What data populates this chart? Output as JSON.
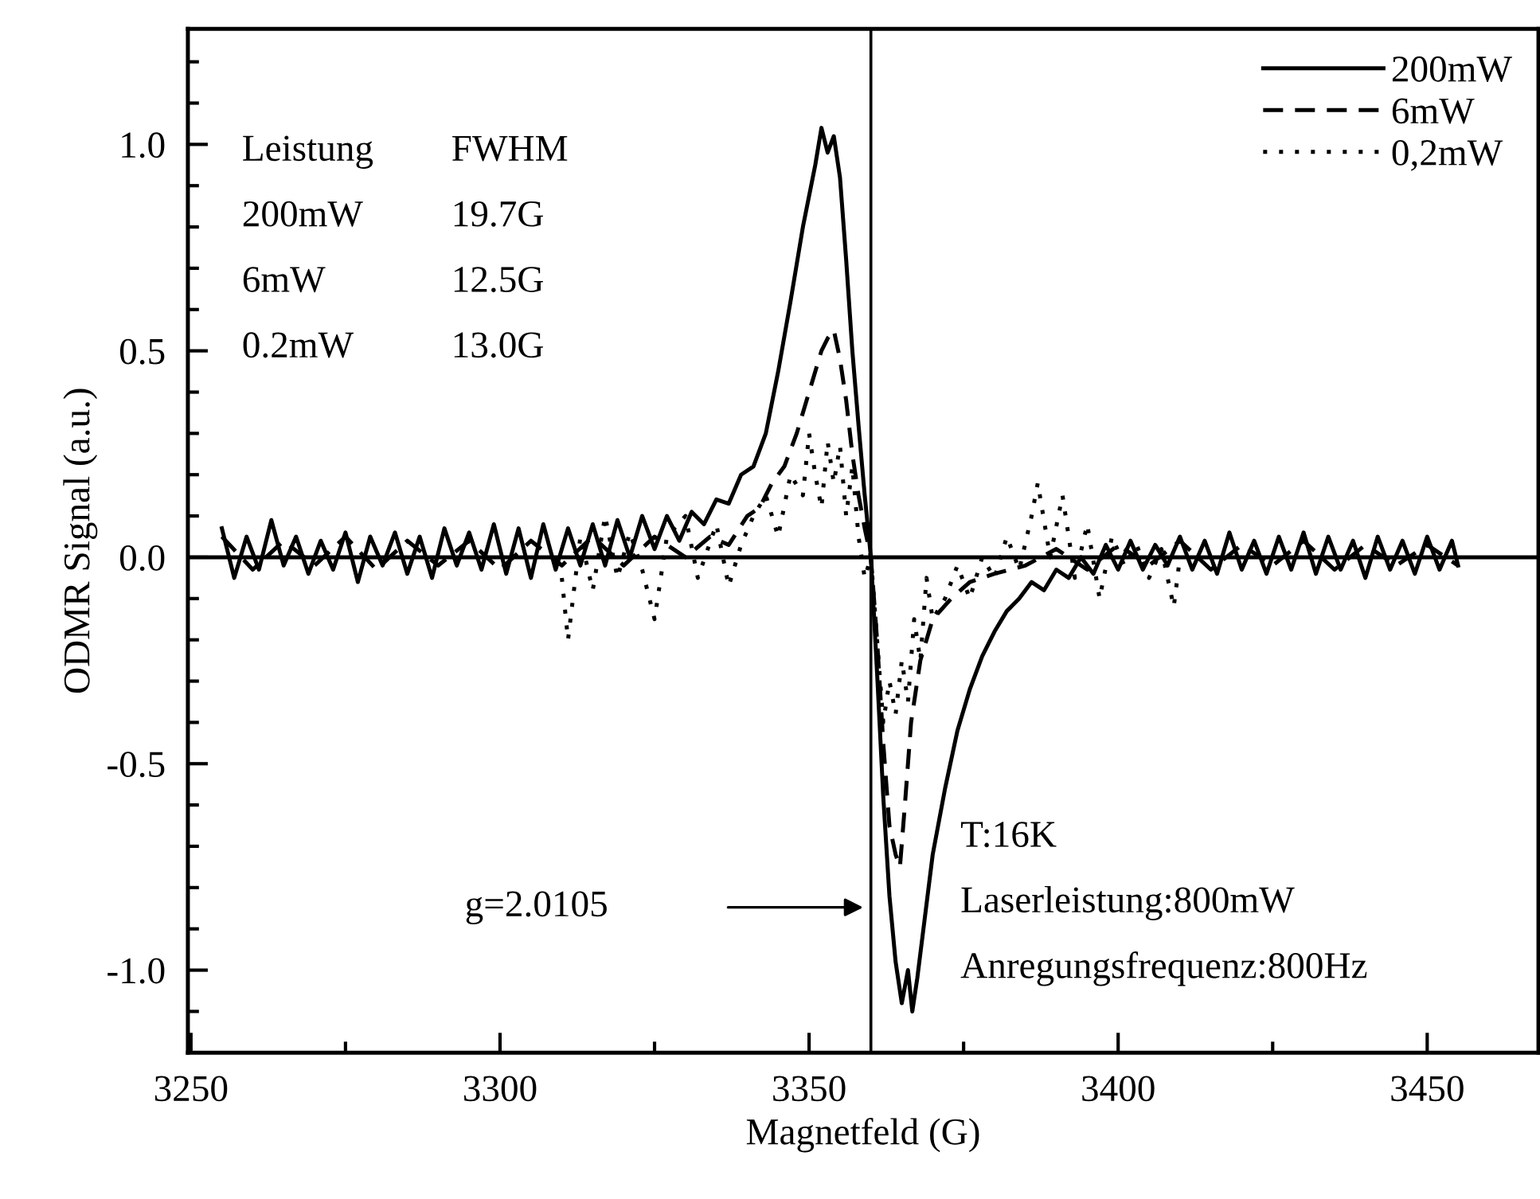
{
  "chart_data": {
    "type": "line",
    "xlabel": "Magnetfeld (G)",
    "ylabel": "ODMR Signal (a.u.)",
    "xlim": [
      3249.5,
      3468
    ],
    "ylim": [
      -1.2,
      1.28
    ],
    "xticks": [
      3250,
      {
        "value": 3275,
        "label": null
      },
      3300,
      {
        "value": 3325,
        "label": null
      },
      3350,
      {
        "value": 3375,
        "label": null
      },
      3400,
      {
        "value": 3425,
        "label": null
      },
      3450
    ],
    "yticks": [
      {
        "value": -1.1,
        "label": null
      },
      {
        "value": -1.0,
        "label": "-1.0"
      },
      {
        "value": -0.9,
        "label": null
      },
      {
        "value": -0.8,
        "label": null
      },
      {
        "value": -0.7,
        "label": null
      },
      {
        "value": -0.6,
        "label": null
      },
      -0.5,
      {
        "value": -0.4,
        "label": null
      },
      {
        "value": -0.3,
        "label": null
      },
      {
        "value": -0.2,
        "label": null
      },
      {
        "value": -0.1,
        "label": null
      },
      {
        "value": 0.0,
        "label": "0.0"
      },
      {
        "value": 0.1,
        "label": null
      },
      {
        "value": 0.2,
        "label": null
      },
      {
        "value": 0.3,
        "label": null
      },
      {
        "value": 0.4,
        "label": null
      },
      0.5,
      {
        "value": 0.6,
        "label": null
      },
      {
        "value": 0.7,
        "label": null
      },
      {
        "value": 0.8,
        "label": null
      },
      {
        "value": 0.9,
        "label": null
      },
      {
        "value": 1.0,
        "label": "1.0"
      },
      {
        "value": 1.1,
        "label": null
      },
      {
        "value": 1.2,
        "label": null
      }
    ],
    "grid": false,
    "legend": "top right",
    "marker": "none",
    "ref_lines": [
      {
        "axis": "x",
        "value": 3360,
        "color": "#000000"
      },
      {
        "axis": "y",
        "value": 0,
        "color": "#000000"
      }
    ],
    "annotations": [
      "Leistung",
      "FWHM",
      "200mW",
      "19.7G",
      "6mW",
      "12.5G",
      "0.2mW",
      "13.0G",
      "T:16K",
      "Laserleistung:800mW",
      "Anregungsfrequenz:800Hz",
      "g=2.0105"
    ],
    "series": [
      {
        "name": "200mW",
        "color": "#000000",
        "line_style": "solid",
        "x": [
          3255,
          3257,
          3259,
          3261,
          3263,
          3265,
          3267,
          3269,
          3271,
          3273,
          3275,
          3277,
          3279,
          3281,
          3283,
          3285,
          3287,
          3289,
          3291,
          3293,
          3295,
          3297,
          3299,
          3301,
          3303,
          3305,
          3307,
          3309,
          3311,
          3313,
          3315,
          3317,
          3319,
          3321,
          3323,
          3325,
          3327,
          3329,
          3331,
          3333,
          3335,
          3337,
          3339,
          3341,
          3343,
          3345,
          3347,
          3349,
          3351,
          3352,
          3353,
          3354,
          3355,
          3356,
          3357,
          3358,
          3359,
          3360,
          3361,
          3362,
          3363,
          3364,
          3365,
          3366,
          3366.7,
          3367.5,
          3368.5,
          3370,
          3372,
          3374,
          3376,
          3378,
          3380,
          3382,
          3384,
          3386,
          3388,
          3390,
          3392,
          3394,
          3396,
          3398,
          3400,
          3402,
          3404,
          3406,
          3408,
          3410,
          3412,
          3414,
          3416,
          3418,
          3420,
          3422,
          3424,
          3426,
          3428,
          3430,
          3432,
          3434,
          3436,
          3438,
          3440,
          3442,
          3444,
          3446,
          3448,
          3450,
          3452,
          3454,
          3455
        ],
        "values": [
          0.07,
          -0.05,
          0.05,
          -0.03,
          0.09,
          -0.02,
          0.05,
          -0.04,
          0.04,
          -0.03,
          0.06,
          -0.06,
          0.05,
          -0.02,
          0.06,
          -0.04,
          0.05,
          -0.05,
          0.07,
          -0.02,
          0.06,
          -0.03,
          0.08,
          -0.04,
          0.07,
          -0.05,
          0.08,
          -0.03,
          0.07,
          -0.02,
          0.08,
          -0.02,
          0.09,
          0.0,
          0.1,
          0.02,
          0.1,
          0.04,
          0.11,
          0.08,
          0.14,
          0.13,
          0.2,
          0.22,
          0.3,
          0.45,
          0.62,
          0.8,
          0.95,
          1.04,
          0.98,
          1.02,
          0.92,
          0.72,
          0.5,
          0.32,
          0.15,
          0.0,
          -0.28,
          -0.58,
          -0.82,
          -0.98,
          -1.08,
          -1.0,
          -1.1,
          -1.02,
          -0.9,
          -0.72,
          -0.56,
          -0.42,
          -0.32,
          -0.24,
          -0.18,
          -0.13,
          -0.1,
          -0.06,
          -0.08,
          -0.03,
          -0.05,
          0.0,
          -0.04,
          0.03,
          -0.03,
          0.04,
          -0.03,
          0.03,
          -0.02,
          0.05,
          -0.03,
          0.04,
          -0.04,
          0.06,
          -0.03,
          0.04,
          -0.04,
          0.05,
          -0.03,
          0.06,
          -0.04,
          0.05,
          -0.03,
          0.04,
          -0.05,
          0.05,
          -0.03,
          0.04,
          -0.04,
          0.05,
          -0.03,
          0.04,
          -0.02
        ]
      },
      {
        "name": "6mW",
        "color": "#000000",
        "line_style": "dashed",
        "x": [
          3255,
          3260,
          3265,
          3270,
          3275,
          3280,
          3285,
          3290,
          3295,
          3300,
          3305,
          3310,
          3315,
          3320,
          3325,
          3330,
          3334,
          3337,
          3340,
          3342,
          3344,
          3346,
          3348,
          3350,
          3352,
          3353,
          3354,
          3355,
          3356,
          3357,
          3358,
          3359,
          3360,
          3361,
          3362,
          3363,
          3364,
          3364.7,
          3365.5,
          3366.5,
          3368,
          3370,
          3373,
          3376,
          3380,
          3385,
          3390,
          3395,
          3400,
          3405,
          3410,
          3415,
          3420,
          3425,
          3430,
          3435,
          3440,
          3445,
          3450,
          3455
        ],
        "values": [
          0.05,
          -0.03,
          0.04,
          -0.02,
          0.05,
          -0.03,
          0.04,
          -0.02,
          0.04,
          -0.03,
          0.04,
          -0.02,
          0.05,
          -0.02,
          0.05,
          0.0,
          0.05,
          0.03,
          0.1,
          0.12,
          0.18,
          0.22,
          0.3,
          0.4,
          0.5,
          0.53,
          0.55,
          0.48,
          0.38,
          0.25,
          0.15,
          0.07,
          0.0,
          -0.2,
          -0.45,
          -0.65,
          -0.72,
          -0.75,
          -0.6,
          -0.4,
          -0.25,
          -0.15,
          -0.1,
          -0.06,
          -0.04,
          -0.02,
          0.02,
          -0.03,
          0.03,
          -0.02,
          0.04,
          -0.03,
          0.03,
          -0.02,
          0.04,
          -0.03,
          0.03,
          -0.02,
          0.03,
          -0.02
        ]
      },
      {
        "name": "0,2mW",
        "color": "#000000",
        "line_style": "dotted",
        "x": [
          3310,
          3311,
          3313,
          3315,
          3317,
          3319,
          3321,
          3323,
          3325,
          3327,
          3330,
          3332,
          3335,
          3337,
          3339,
          3341,
          3343,
          3345,
          3347,
          3349,
          3350,
          3351,
          3352,
          3353,
          3354,
          3355,
          3356,
          3357,
          3358,
          3359,
          3360,
          3361,
          3362,
          3363,
          3364,
          3365,
          3366,
          3367,
          3368,
          3369,
          3370,
          3372,
          3374,
          3376,
          3378,
          3380,
          3382,
          3384,
          3386,
          3387,
          3389,
          3391,
          3393,
          3395,
          3397,
          3399,
          3401,
          3403,
          3405,
          3407,
          3409,
          3410
        ],
        "values": [
          -0.05,
          -0.2,
          0.05,
          -0.08,
          0.1,
          -0.05,
          0.06,
          -0.03,
          -0.15,
          0.05,
          0.1,
          -0.05,
          0.08,
          -0.07,
          0.03,
          0.1,
          0.15,
          0.05,
          0.2,
          0.15,
          0.3,
          0.2,
          0.12,
          0.28,
          0.18,
          0.27,
          0.1,
          0.22,
          0.05,
          -0.05,
          0.0,
          -0.2,
          -0.4,
          -0.3,
          -0.38,
          -0.25,
          -0.35,
          -0.15,
          -0.25,
          -0.05,
          -0.15,
          -0.1,
          -0.02,
          -0.1,
          0.0,
          -0.05,
          0.05,
          -0.03,
          0.1,
          0.18,
          0.0,
          0.15,
          -0.05,
          0.08,
          -0.1,
          0.05,
          -0.02,
          0.03,
          -0.05,
          0.02,
          -0.12,
          0.0
        ]
      }
    ]
  }
}
